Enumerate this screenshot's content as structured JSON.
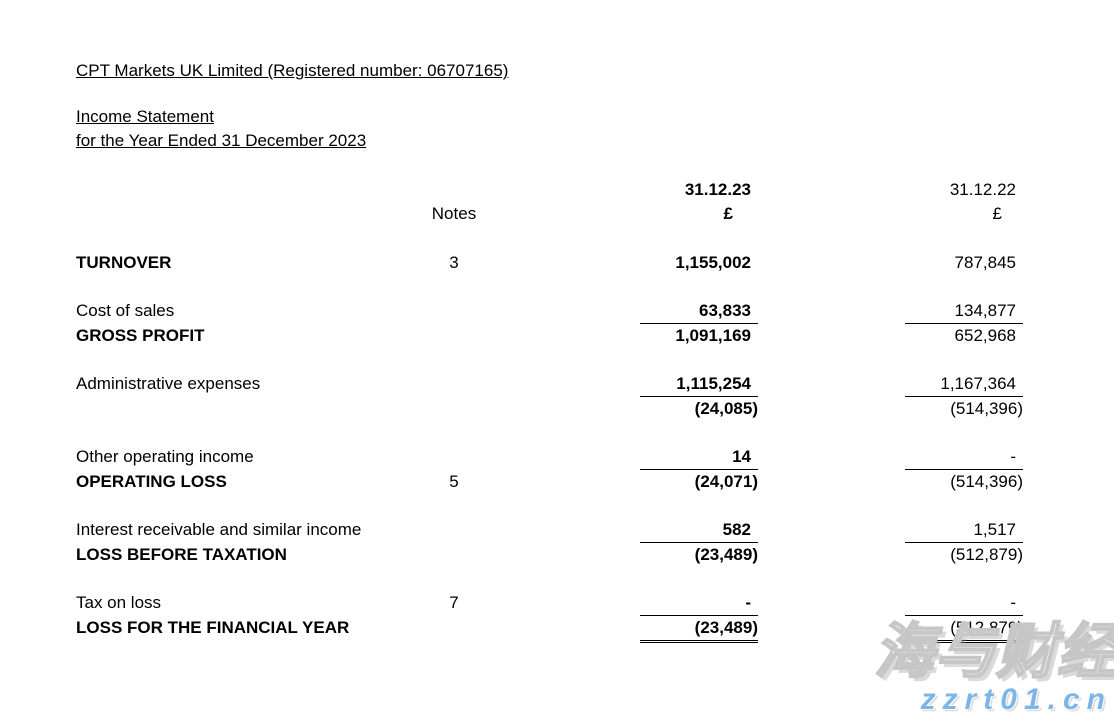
{
  "page": {
    "company_title": "CPT Markets UK Limited (Registered number: 06707165)",
    "statement_title": "Income Statement",
    "statement_period": "for the Year Ended 31 December 2023"
  },
  "table": {
    "headers": {
      "notes": "Notes",
      "year_current": "31.12.23",
      "year_prior": "31.12.22",
      "currency_current": "£",
      "currency_prior": "£"
    },
    "rows": [
      {
        "label": "TURNOVER",
        "note": "3",
        "current": "1,155,002",
        "prior": "787,845"
      },
      {
        "label": "Cost of sales",
        "note": "",
        "current": "63,833",
        "prior": "134,877"
      },
      {
        "label": "GROSS PROFIT",
        "note": "",
        "current": "1,091,169",
        "prior": "652,968"
      },
      {
        "label": "Administrative expenses",
        "note": "",
        "current": "1,115,254",
        "prior": "1,167,364"
      },
      {
        "label": "",
        "note": "",
        "current": "(24,085)",
        "prior": "(514,396)"
      },
      {
        "label": "Other operating income",
        "note": "",
        "current": "14",
        "prior": "-"
      },
      {
        "label": "OPERATING LOSS",
        "note": "5",
        "current": "(24,071)",
        "prior": "(514,396)"
      },
      {
        "label": "Interest receivable and similar income",
        "note": "",
        "current": "582",
        "prior": "1,517"
      },
      {
        "label": "LOSS BEFORE TAXATION",
        "note": "",
        "current": "(23,489)",
        "prior": "(512,879)"
      },
      {
        "label": "Tax on loss",
        "note": "7",
        "current": "-",
        "prior": "-"
      },
      {
        "label": "LOSS FOR THE FINANCIAL YEAR",
        "note": "",
        "current": "(23,489)",
        "prior": "(512,879)"
      }
    ]
  },
  "watermark": {
    "cn_text": "海与财经",
    "domain": "zzrt01.cn",
    "accent_blue": "#7db5e8"
  }
}
